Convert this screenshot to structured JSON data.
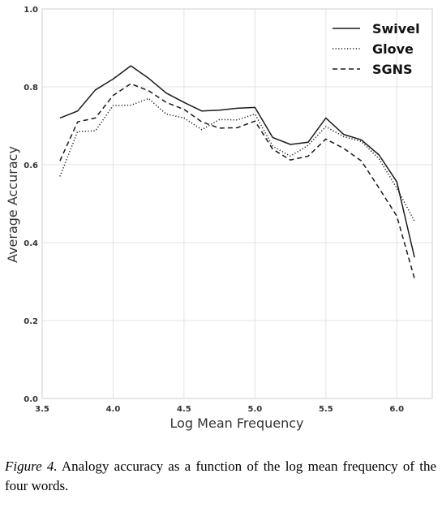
{
  "chart_data": {
    "type": "line",
    "xlabel": "Log Mean Frequency",
    "ylabel": "Average Accuracy",
    "xlim": [
      3.5,
      6.25
    ],
    "ylim": [
      0.0,
      1.0
    ],
    "x_ticks": [
      "3.5",
      "4.0",
      "4.5",
      "5.0",
      "5.5",
      "6.0"
    ],
    "y_ticks": [
      "0.0",
      "0.2",
      "0.4",
      "0.6",
      "0.8",
      "1.0"
    ],
    "grid": true,
    "legend_position": "top-right",
    "x": [
      3.625,
      3.75,
      3.875,
      4.0,
      4.125,
      4.25,
      4.375,
      4.5,
      4.625,
      4.75,
      4.875,
      5.0,
      5.125,
      5.25,
      5.375,
      5.5,
      5.625,
      5.75,
      5.875,
      6.0,
      6.125
    ],
    "series": [
      {
        "name": "Swivel",
        "style": "solid",
        "values": [
          0.72,
          0.738,
          0.792,
          0.82,
          0.854,
          0.822,
          0.784,
          0.76,
          0.738,
          0.74,
          0.745,
          0.747,
          0.67,
          0.652,
          0.658,
          0.72,
          0.678,
          0.664,
          0.625,
          0.556,
          0.362
        ]
      },
      {
        "name": "Glove",
        "style": "dotted",
        "values": [
          0.57,
          0.685,
          0.687,
          0.752,
          0.753,
          0.77,
          0.73,
          0.72,
          0.69,
          0.716,
          0.715,
          0.73,
          0.648,
          0.622,
          0.65,
          0.698,
          0.672,
          0.66,
          0.615,
          0.54,
          0.455
        ]
      },
      {
        "name": "SGNS",
        "style": "dashed",
        "values": [
          0.61,
          0.71,
          0.72,
          0.778,
          0.808,
          0.79,
          0.76,
          0.742,
          0.71,
          0.694,
          0.695,
          0.712,
          0.64,
          0.612,
          0.622,
          0.666,
          0.642,
          0.61,
          0.54,
          0.468,
          0.308
        ]
      }
    ]
  },
  "caption": {
    "figure_label": "Figure 4.",
    "text": " Analogy accuracy as a function of the log mean frequency of the four words."
  }
}
